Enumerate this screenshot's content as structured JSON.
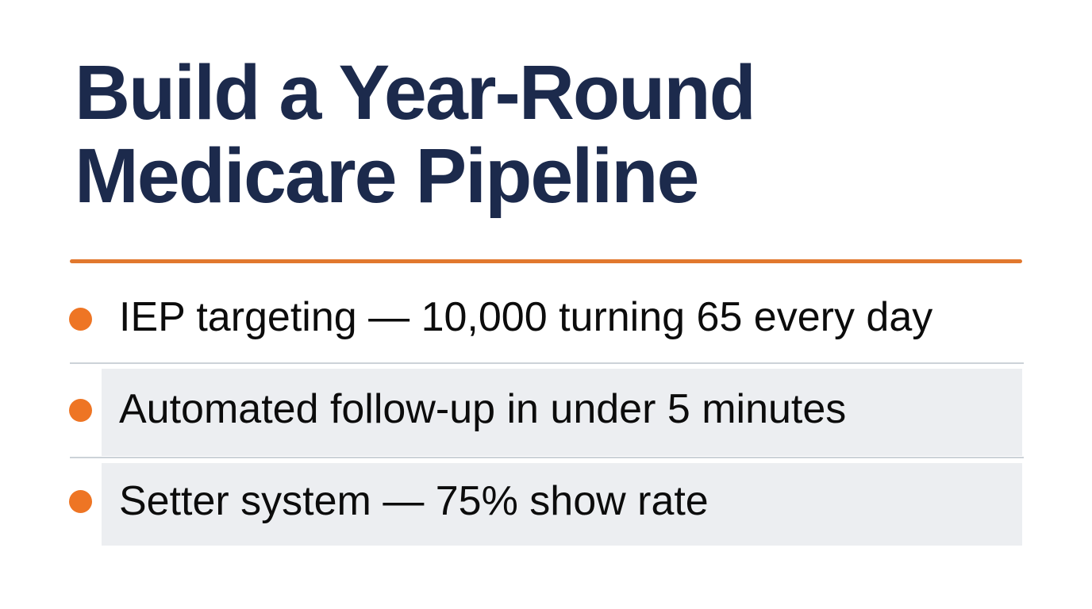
{
  "slide": {
    "title_line1": "Build a Year-Round",
    "title_line2": "Medicare Pipeline",
    "bullets": [
      {
        "text": "IEP targeting — 10,000 turning 65 every day",
        "highlighted": false
      },
      {
        "text": "Automated follow-up in under 5 minutes",
        "highlighted": true
      },
      {
        "text": "Setter system — 75% show rate",
        "highlighted": true
      }
    ],
    "colors": {
      "background": "#ffffff",
      "heading": "#1c2a4c",
      "accent_orange": "#e1782e",
      "bullet_dot": "#ee7524",
      "body_text": "#0c0c0c",
      "row_highlight": "#eceef1",
      "separator": "#ccd2d8"
    }
  }
}
